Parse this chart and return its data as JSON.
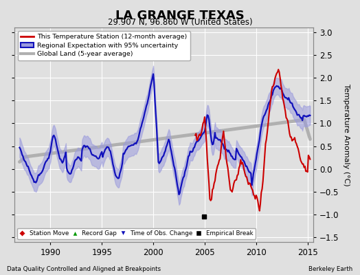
{
  "title": "LA GRANGE TEXAS",
  "subtitle": "29.907 N, 96.860 W (United States)",
  "ylabel": "Temperature Anomaly (°C)",
  "footer_left": "Data Quality Controlled and Aligned at Breakpoints",
  "footer_right": "Berkeley Earth",
  "xlim": [
    1986.5,
    2015.5
  ],
  "ylim": [
    -1.6,
    3.1
  ],
  "yticks": [
    -1.5,
    -1.0,
    -0.5,
    0.0,
    0.5,
    1.0,
    1.5,
    2.0,
    2.5,
    3.0
  ],
  "xticks": [
    1990,
    1995,
    2000,
    2005,
    2010,
    2015
  ],
  "bg_color": "#e0e0e0",
  "grid_color": "#ffffff",
  "station_line_color": "#cc0000",
  "regional_line_color": "#1111bb",
  "regional_fill_color": "#9999dd",
  "global_line_color": "#b0b0b0",
  "empirical_break_x": 2004.9,
  "empirical_break_y": -1.05,
  "legend_station": "This Temperature Station (12-month average)",
  "legend_regional": "Regional Expectation with 95% uncertainty",
  "legend_global": "Global Land (5-year average)"
}
